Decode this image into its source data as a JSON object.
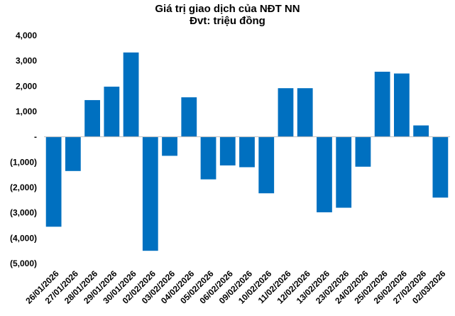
{
  "chart_data": {
    "type": "bar",
    "title": "Giá trị giao dịch của NĐT NN",
    "subtitle": "Đvt: triệu đồng",
    "xlabel": "",
    "ylabel": "",
    "ylim": [
      -5000,
      4000
    ],
    "y_ticks": [
      {
        "value": 4000,
        "label": "4,000"
      },
      {
        "value": 3000,
        "label": "3,000"
      },
      {
        "value": 2000,
        "label": "2,000"
      },
      {
        "value": 1000,
        "label": "1,000"
      },
      {
        "value": 0,
        "label": "-"
      },
      {
        "value": -1000,
        "label": "(1,000)"
      },
      {
        "value": -2000,
        "label": "(2,000)"
      },
      {
        "value": -3000,
        "label": "(3,000)"
      },
      {
        "value": -4000,
        "label": "(4,000)"
      },
      {
        "value": -5000,
        "label": "(5,000)"
      }
    ],
    "grid": false,
    "legend": "none",
    "bar_color": "#0070c0",
    "categories": [
      "26/01/2026",
      "27/01/2026",
      "28/01/2026",
      "29/01/2026",
      "30/01/2026",
      "02/02/2026",
      "03/02/2026",
      "04/02/2026",
      "05/02/2026",
      "06/02/2026",
      "09/02/2026",
      "10/02/2026",
      "11/02/2026",
      "12/02/2026",
      "13/02/2026",
      "23/02/2026",
      "24/02/2026",
      "25/02/2026",
      "26/02/2026",
      "27/02/2026",
      "02/03/2026"
    ],
    "values": [
      -3550,
      -1350,
      1450,
      1980,
      3330,
      -4500,
      -750,
      1560,
      -1680,
      -1130,
      -1200,
      -2230,
      1920,
      1920,
      -2980,
      -2800,
      -1180,
      2570,
      2500,
      450,
      -2400
    ]
  }
}
